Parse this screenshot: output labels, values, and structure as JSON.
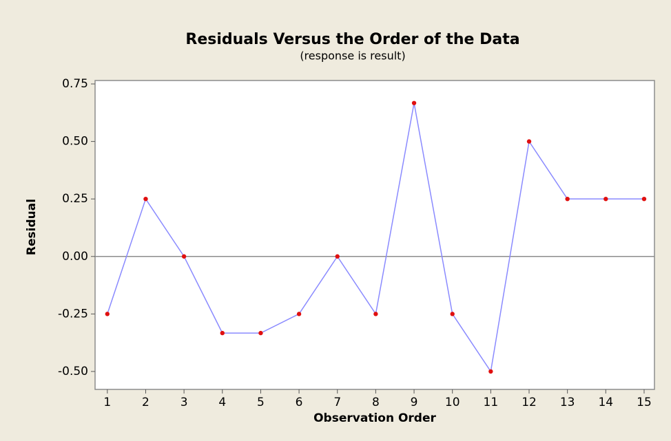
{
  "chart_data": {
    "type": "line",
    "title": "Residuals Versus the Order of the Data",
    "subtitle": "(response is result)",
    "x_label": "Observation Order",
    "y_label": "Residual",
    "x": [
      1,
      2,
      3,
      4,
      5,
      6,
      7,
      8,
      9,
      10,
      11,
      12,
      13,
      14,
      15
    ],
    "series": [
      {
        "name": "Residual",
        "color": "#8a8aff",
        "marker_color": "#e01010",
        "values": [
          -0.25,
          0.25,
          0,
          -0.333,
          -0.333,
          -0.25,
          0,
          -0.25,
          0.667,
          -0.25,
          -0.5,
          0.5,
          0.25,
          0.25,
          0.25
        ]
      }
    ],
    "xlim": [
      0.68,
      15.27
    ],
    "xticks": [
      1,
      2,
      3,
      4,
      5,
      6,
      7,
      8,
      9,
      10,
      11,
      12,
      13,
      14,
      15
    ],
    "ylim": [
      -0.578,
      0.765
    ],
    "yticks": [
      {
        "value": 0.75,
        "label": "0.75"
      },
      {
        "value": 0.5,
        "label": "0.50"
      },
      {
        "value": 0.25,
        "label": "0.25"
      },
      {
        "value": 0,
        "label": "0.00"
      },
      {
        "value": -0.25,
        "label": "-0.25"
      },
      {
        "value": -0.5,
        "label": "-0.50"
      }
    ],
    "reference_line": 0,
    "grid": false
  }
}
